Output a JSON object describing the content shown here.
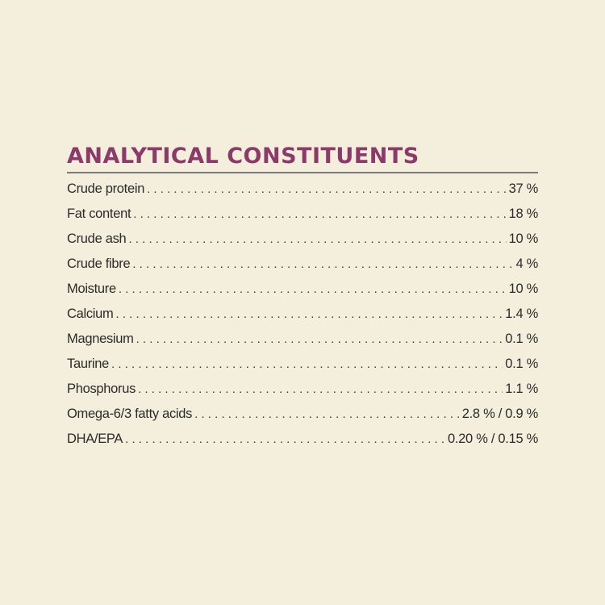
{
  "title": "ANALYTICAL CONSTITUENTS",
  "colors": {
    "background": "#f3efdc",
    "heading": "#8b3a6a",
    "rule": "#7a7a7a",
    "text": "#2b2b2b"
  },
  "constituents": [
    {
      "label": "Crude protein",
      "value": "37 %"
    },
    {
      "label": "Fat content",
      "value": "18 %"
    },
    {
      "label": "Crude ash",
      "value": "10 %"
    },
    {
      "label": "Crude fibre",
      "value": "4 %"
    },
    {
      "label": "Moisture",
      "value": "10 %"
    },
    {
      "label": "Calcium",
      "value": "1.4 %"
    },
    {
      "label": "Magnesium",
      "value": "0.1 %"
    },
    {
      "label": "Taurine",
      "value": "0.1 %"
    },
    {
      "label": "Phosphorus",
      "value": "1.1 %"
    },
    {
      "label": "Omega-6/3 fatty acids",
      "value": "2.8 % / 0.9 %"
    },
    {
      "label": "DHA/EPA",
      "value": "0.20 % / 0.15 %"
    }
  ]
}
